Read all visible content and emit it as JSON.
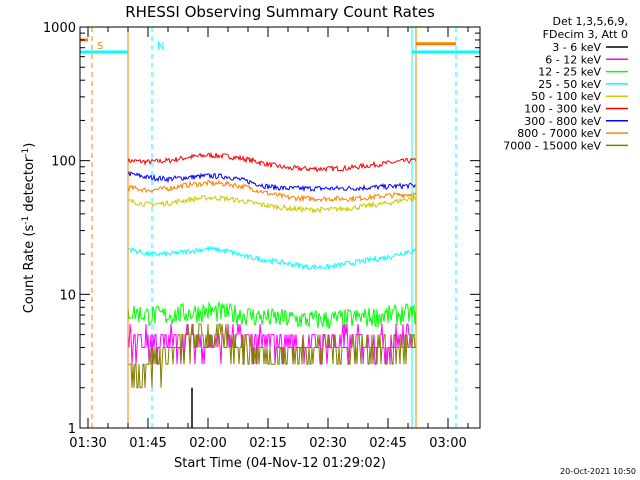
{
  "chart_data": {
    "type": "line",
    "title": "RHESSI Observing Summary Count Rates",
    "xlabel": "Start Time (04-Nov-12 01:29:02)",
    "ylabel_main": "Count Rate (s",
    "ylabel_sup1": "-1",
    "ylabel_mid": " detector",
    "ylabel_sup2": "-1",
    "ylabel_end": ")",
    "y_scale": "log",
    "ylim": [
      1,
      1000
    ],
    "xlim": [
      "01:28",
      "03:08"
    ],
    "x_ticks": [
      "01:30",
      "01:45",
      "02:00",
      "02:15",
      "02:30",
      "02:45",
      "03:00"
    ],
    "y_ticks": [
      "1",
      "10",
      "100",
      "1000"
    ],
    "legend_header": [
      "Det 1,3,5,6,9,",
      "FDecim 3, Att 0"
    ],
    "legend_position": "top-right-outside",
    "legend": [
      {
        "label": "3 - 6 keV",
        "color": "#000000"
      },
      {
        "label": "6 - 12 keV",
        "color": "#ff00ff"
      },
      {
        "label": "12 - 25 keV",
        "color": "#00ff00"
      },
      {
        "label": "25 - 50 keV",
        "color": "#00ffff"
      },
      {
        "label": "50 - 100 keV",
        "color": "#cccc00"
      },
      {
        "label": "100 - 300 keV",
        "color": "#ff0000"
      },
      {
        "label": "300 - 800 keV",
        "color": "#0000ff"
      },
      {
        "label": "800 - 7000 keV",
        "color": "#ff8000"
      },
      {
        "label": "7000 - 15000 keV",
        "color": "#808000"
      }
    ],
    "series": [
      {
        "name": "100 - 300 keV",
        "color": "#ff0000",
        "x": [
          "01:40",
          "01:45",
          "01:50",
          "01:55",
          "02:00",
          "02:05",
          "02:10",
          "02:15",
          "02:20",
          "02:25",
          "02:30",
          "02:35",
          "02:40",
          "02:45",
          "02:50"
        ],
        "values": [
          100,
          98,
          100,
          106,
          110,
          108,
          102,
          94,
          88,
          87,
          87,
          88,
          92,
          96,
          100
        ]
      },
      {
        "name": "300 - 800 keV",
        "color": "#0000ff",
        "x": [
          "01:40",
          "01:45",
          "01:50",
          "01:55",
          "02:00",
          "02:05",
          "02:10",
          "02:15",
          "02:20",
          "02:25",
          "02:30",
          "02:35",
          "02:40",
          "02:45",
          "02:50"
        ],
        "values": [
          80,
          75,
          73,
          75,
          77,
          76,
          70,
          64,
          62,
          62,
          62,
          62,
          63,
          64,
          65
        ]
      },
      {
        "name": "800 - 7000 keV",
        "color": "#ff8000",
        "x": [
          "01:40",
          "01:45",
          "01:50",
          "01:55",
          "02:00",
          "02:05",
          "02:10",
          "02:15",
          "02:20",
          "02:25",
          "02:30",
          "02:35",
          "02:40",
          "02:45",
          "02:50"
        ],
        "values": [
          63,
          60,
          62,
          66,
          68,
          67,
          63,
          57,
          53,
          52,
          52,
          52,
          53,
          55,
          56
        ]
      },
      {
        "name": "50 - 100 keV",
        "color": "#cccc00",
        "x": [
          "01:40",
          "01:45",
          "01:50",
          "01:55",
          "02:00",
          "02:05",
          "02:10",
          "02:15",
          "02:20",
          "02:25",
          "02:30",
          "02:35",
          "02:40",
          "02:45",
          "02:50"
        ],
        "values": [
          50,
          47,
          48,
          51,
          53,
          52,
          49,
          46,
          44,
          43,
          43,
          44,
          46,
          48,
          52
        ]
      },
      {
        "name": "25 - 50 keV",
        "color": "#00ffff",
        "x": [
          "01:40",
          "01:45",
          "01:50",
          "01:55",
          "02:00",
          "02:05",
          "02:10",
          "02:15",
          "02:20",
          "02:25",
          "02:30",
          "02:35",
          "02:40",
          "02:45",
          "02:50"
        ],
        "values": [
          22,
          20,
          20,
          21,
          22,
          21,
          19,
          18,
          17,
          16,
          16,
          17,
          18,
          19,
          21
        ]
      },
      {
        "name": "12 - 25 keV",
        "color": "#00ff00",
        "x": [
          "01:40",
          "01:45",
          "01:50",
          "01:55",
          "02:00",
          "02:05",
          "02:10",
          "02:15",
          "02:20",
          "02:25",
          "02:30",
          "02:35",
          "02:40",
          "02:45",
          "02:50"
        ],
        "values": [
          7.5,
          7,
          7,
          7.3,
          7.5,
          7.3,
          7,
          6.7,
          6.6,
          6.5,
          6.5,
          6.6,
          6.8,
          7,
          7.2
        ]
      },
      {
        "name": "6 - 12 keV",
        "color": "#ff00ff",
        "x": [
          "01:40",
          "01:45",
          "01:50",
          "01:55",
          "02:00",
          "02:05",
          "02:10",
          "02:15",
          "02:20",
          "02:25",
          "02:30",
          "02:35",
          "02:40",
          "02:45",
          "02:50"
        ],
        "values": [
          4.5,
          4.4,
          4.5,
          4.5,
          4.6,
          4.5,
          4.5,
          4.4,
          4.4,
          4.4,
          4.4,
          4.5,
          4.5,
          4.5,
          4.6
        ]
      },
      {
        "name": "7000 - 15000 keV",
        "color": "#808000",
        "x": [
          "01:40",
          "01:45",
          "01:50",
          "01:55",
          "02:00",
          "02:05",
          "02:10",
          "02:15",
          "02:20",
          "02:25",
          "02:30",
          "02:35",
          "02:40",
          "02:45",
          "02:50"
        ],
        "values": [
          2.5,
          3,
          3.5,
          4.5,
          5,
          4.5,
          4,
          3.5,
          3.5,
          3.8,
          4,
          4,
          4,
          4,
          4
        ]
      }
    ],
    "spike": {
      "x": "01:56",
      "value": 2
    },
    "level_lines": [
      {
        "color": "#00ffff",
        "value": 650,
        "x_start": "01:28",
        "x_end": "01:40"
      },
      {
        "color": "#00ffff",
        "value": 650,
        "x_start": "02:51",
        "x_end": "03:08"
      },
      {
        "color": "#ff8000",
        "value": 750,
        "x_start": "02:52",
        "x_end": "03:02"
      }
    ],
    "markers": [
      {
        "x": "01:28",
        "color": "#00ffff",
        "style": "solid"
      },
      {
        "x": "01:31",
        "color": "#ff8000",
        "style": "dashed",
        "label": "S"
      },
      {
        "x": "01:40",
        "color": "#ff8000",
        "style": "solid"
      },
      {
        "x": "01:46",
        "color": "#00ffff",
        "style": "dashed",
        "label": "N"
      },
      {
        "x": "02:51",
        "color": "#00ffff",
        "style": "solid"
      },
      {
        "x": "02:52",
        "color": "#ff8000",
        "style": "solid"
      },
      {
        "x": "03:02",
        "color": "#00ffff",
        "style": "dashed"
      }
    ],
    "s_marker_level": 800
  },
  "footer": {
    "timestamp": "20-Oct-2021 10:50"
  }
}
